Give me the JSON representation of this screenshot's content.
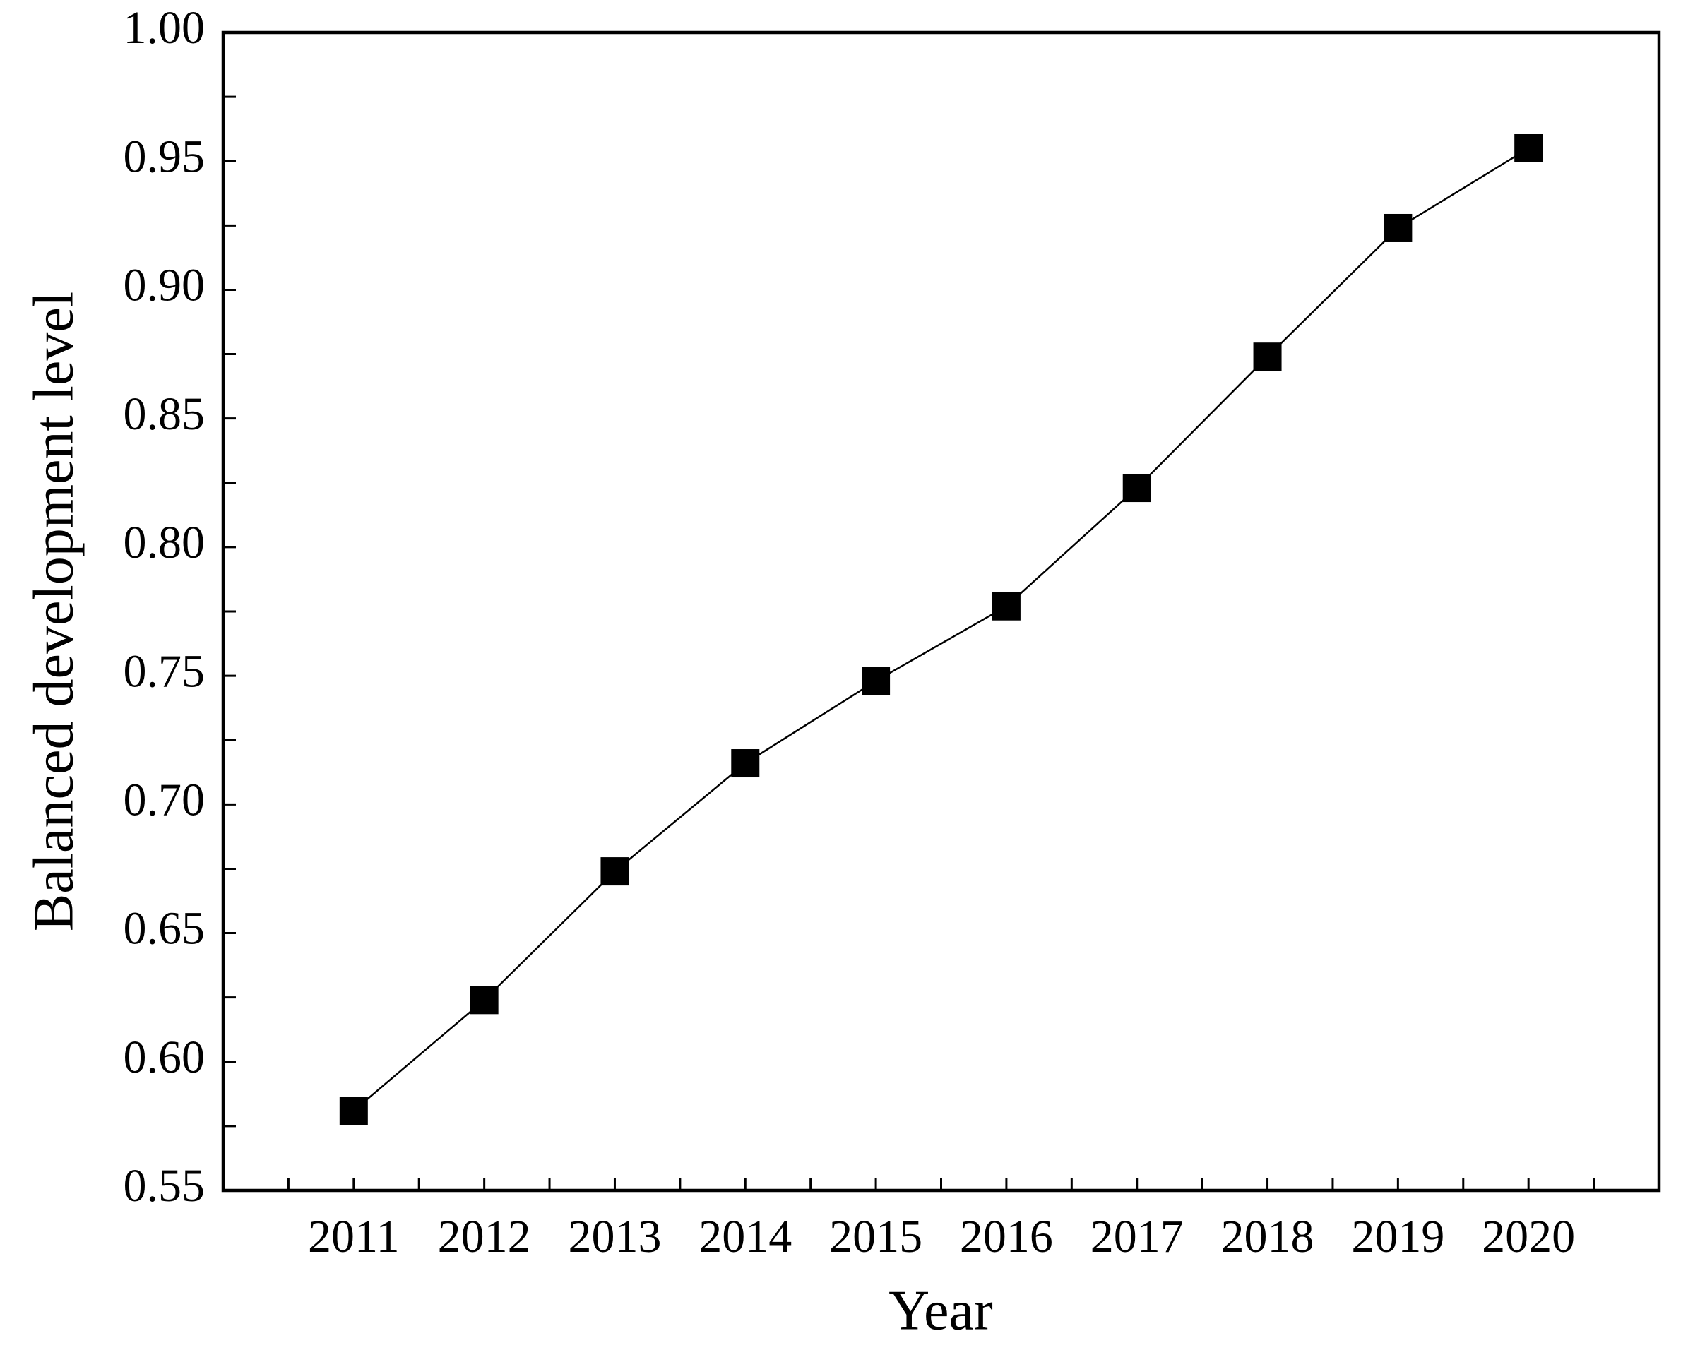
{
  "chart_data": {
    "type": "line",
    "xlabel": "Year",
    "ylabel": "Balanced development level",
    "x": [
      2011,
      2012,
      2013,
      2014,
      2015,
      2016,
      2017,
      2018,
      2019,
      2020
    ],
    "series": [
      {
        "name": "Balanced development level",
        "color": "#000000",
        "values": [
          0.581,
          0.624,
          0.674,
          0.716,
          0.748,
          0.777,
          0.823,
          0.874,
          0.924,
          0.955
        ]
      }
    ],
    "xlim": [
      2010,
      2021
    ],
    "xticks": [
      2011,
      2012,
      2013,
      2014,
      2015,
      2016,
      2017,
      2018,
      2019,
      2020
    ],
    "ylim": [
      0.55,
      1
    ],
    "yticks": [
      0.55,
      {
        "value": 0.6,
        "label": "0.60"
      },
      0.65,
      {
        "value": 0.7,
        "label": "0.70"
      },
      0.75,
      {
        "value": 0.8,
        "label": "0.80"
      },
      0.85,
      {
        "value": 0.9,
        "label": "0.90"
      },
      0.95,
      {
        "value": 1,
        "label": "1.00"
      }
    ],
    "grid": false,
    "marker": "square"
  }
}
